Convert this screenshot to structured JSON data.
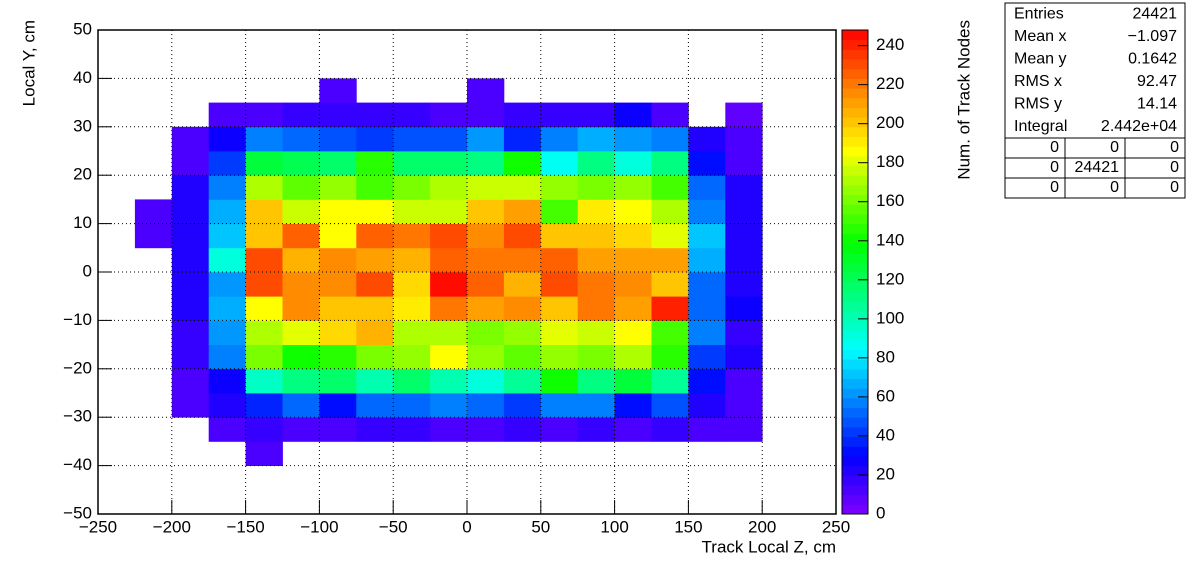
{
  "chart_data": {
    "type": "heatmap",
    "x_label": "Track Local Z, cm",
    "y_label": "Local Y, cm",
    "z_label": "Num. of Track Nodes",
    "xbins": [
      -250,
      -225,
      -200,
      -175,
      -150,
      -125,
      -100,
      -75,
      -50,
      -25,
      0,
      25,
      50,
      75,
      100,
      125,
      150,
      175,
      200,
      225,
      250
    ],
    "ybins": [
      -50,
      -45,
      -40,
      -35,
      -30,
      -25,
      -20,
      -15,
      -10,
      -5,
      0,
      5,
      10,
      15,
      20,
      25,
      30,
      35,
      40,
      45,
      50
    ],
    "z": [
      [
        null,
        null,
        null,
        null,
        null,
        null,
        null,
        null,
        null,
        null,
        null,
        null,
        null,
        null,
        null,
        null,
        null,
        null,
        null,
        null
      ],
      [
        null,
        null,
        null,
        null,
        null,
        null,
        null,
        null,
        null,
        null,
        null,
        null,
        null,
        null,
        null,
        null,
        null,
        null,
        null,
        null
      ],
      [
        null,
        null,
        null,
        null,
        10,
        null,
        null,
        null,
        null,
        null,
        null,
        null,
        null,
        null,
        null,
        null,
        null,
        null,
        null,
        null
      ],
      [
        null,
        null,
        null,
        10,
        18,
        14,
        14,
        16,
        18,
        14,
        14,
        18,
        14,
        16,
        14,
        15,
        14,
        10,
        null,
        null
      ],
      [
        null,
        null,
        10,
        20,
        35,
        50,
        30,
        50,
        50,
        55,
        50,
        42,
        55,
        55,
        30,
        45,
        22,
        12,
        null,
        null
      ],
      [
        null,
        null,
        12,
        28,
        95,
        110,
        115,
        100,
        115,
        100,
        90,
        105,
        140,
        110,
        125,
        105,
        30,
        12,
        null,
        null
      ],
      [
        null,
        null,
        18,
        55,
        160,
        140,
        145,
        160,
        165,
        185,
        165,
        158,
        165,
        160,
        172,
        145,
        40,
        20,
        null,
        null
      ],
      [
        null,
        null,
        18,
        62,
        170,
        182,
        195,
        205,
        172,
        172,
        160,
        168,
        180,
        178,
        188,
        150,
        55,
        15,
        null,
        null
      ],
      [
        null,
        null,
        20,
        65,
        185,
        215,
        200,
        200,
        192,
        222,
        212,
        215,
        200,
        222,
        210,
        240,
        50,
        25,
        null,
        null
      ],
      [
        null,
        null,
        22,
        60,
        232,
        218,
        215,
        230,
        195,
        244,
        225,
        208,
        230,
        222,
        215,
        200,
        50,
        20,
        null,
        null
      ],
      [
        null,
        null,
        22,
        90,
        230,
        205,
        215,
        212,
        208,
        228,
        222,
        220,
        225,
        210,
        212,
        210,
        65,
        20,
        null,
        null
      ],
      [
        null,
        10,
        22,
        70,
        200,
        225,
        185,
        228,
        220,
        232,
        218,
        230,
        200,
        200,
        195,
        183,
        70,
        20,
        null,
        null
      ],
      [
        null,
        10,
        22,
        65,
        200,
        175,
        185,
        185,
        175,
        178,
        200,
        210,
        150,
        190,
        185,
        170,
        55,
        20,
        null,
        null
      ],
      [
        null,
        null,
        22,
        55,
        170,
        155,
        165,
        150,
        160,
        170,
        178,
        178,
        165,
        160,
        165,
        150,
        50,
        20,
        null,
        null
      ],
      [
        null,
        null,
        12,
        40,
        125,
        120,
        115,
        145,
        115,
        115,
        110,
        140,
        85,
        110,
        90,
        110,
        30,
        12,
        null,
        null
      ],
      [
        null,
        null,
        10,
        28,
        55,
        50,
        48,
        42,
        48,
        48,
        60,
        35,
        58,
        65,
        62,
        55,
        20,
        10,
        null,
        null
      ],
      [
        null,
        null,
        null,
        12,
        12,
        15,
        18,
        16,
        15,
        14,
        14,
        15,
        15,
        18,
        25,
        12,
        null,
        8,
        null,
        null
      ],
      [
        null,
        null,
        null,
        null,
        null,
        null,
        10,
        null,
        null,
        null,
        10,
        null,
        null,
        null,
        null,
        null,
        null,
        null,
        null,
        null
      ],
      [
        null,
        null,
        null,
        null,
        null,
        null,
        null,
        null,
        null,
        null,
        null,
        null,
        null,
        null,
        null,
        null,
        null,
        null,
        null,
        null
      ],
      [
        null,
        null,
        null,
        null,
        null,
        null,
        null,
        null,
        null,
        null,
        null,
        null,
        null,
        null,
        null,
        null,
        null,
        null,
        null,
        null
      ]
    ],
    "xlim": [
      -250,
      250
    ],
    "ylim": [
      -50,
      50
    ],
    "zlim": [
      0,
      248
    ],
    "xticks": [
      {
        "value": -250,
        "label": "−250"
      },
      {
        "value": -200,
        "label": "−200"
      },
      {
        "value": -150,
        "label": "−150"
      },
      {
        "value": -100,
        "label": "−100"
      },
      {
        "value": -50,
        "label": "−50"
      },
      0,
      50,
      100,
      150,
      200,
      250
    ],
    "yticks": [
      {
        "value": -50,
        "label": "−50"
      },
      {
        "value": -40,
        "label": "−40"
      },
      {
        "value": -30,
        "label": "−30"
      },
      {
        "value": -20,
        "label": "−20"
      },
      {
        "value": -10,
        "label": "−10"
      },
      0,
      10,
      20,
      30,
      40,
      50
    ],
    "zticks": [
      0,
      20,
      40,
      60,
      80,
      100,
      120,
      140,
      160,
      180,
      200,
      220,
      240
    ],
    "grid": true,
    "stats": [
      {
        "label": "Entries",
        "value": "24421"
      },
      {
        "label": "Mean x",
        "value": "−1.097"
      },
      {
        "label": "Mean y",
        "value": "0.1642"
      },
      {
        "label": "RMS x",
        "value": "92.47"
      },
      {
        "label": "RMS y",
        "value": "14.14"
      },
      {
        "label": "Integral",
        "value": "2.442e+04"
      }
    ],
    "overflow": [
      [
        0,
        0,
        0
      ],
      [
        0,
        24421,
        0
      ],
      [
        0,
        0,
        0
      ]
    ]
  }
}
